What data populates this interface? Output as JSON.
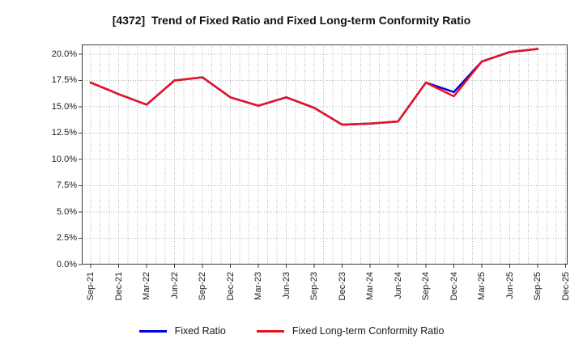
{
  "title": "[4372]  Trend of Fixed Ratio and Fixed Long-term Conformity Ratio",
  "chart_data": {
    "type": "line",
    "title": "[4372]  Trend of Fixed Ratio and Fixed Long-term Conformity Ratio",
    "categories": [
      "Sep-21",
      "Dec-21",
      "Mar-22",
      "Jun-22",
      "Sep-22",
      "Dec-22",
      "Mar-23",
      "Jun-23",
      "Sep-23",
      "Dec-23",
      "Mar-24",
      "Jun-24",
      "Sep-24",
      "Dec-24",
      "Mar-25",
      "Jun-25",
      "Sep-25",
      "Dec-25"
    ],
    "series": [
      {
        "name": "Fixed Ratio",
        "color": "#0000dd",
        "values": [
          17.3,
          16.2,
          15.2,
          17.5,
          17.8,
          15.9,
          15.1,
          15.9,
          14.9,
          13.3,
          13.4,
          13.6,
          17.3,
          16.4,
          19.3,
          20.2,
          20.5,
          null
        ]
      },
      {
        "name": "Fixed Long-term Conformity Ratio",
        "color": "#e8121f",
        "values": [
          17.3,
          16.2,
          15.2,
          17.5,
          17.8,
          15.9,
          15.1,
          15.9,
          14.9,
          13.3,
          13.4,
          13.6,
          17.3,
          16.0,
          19.3,
          20.2,
          20.5,
          null
        ]
      }
    ],
    "ylim": [
      0,
      20.92
    ],
    "ytick_values": [
      0,
      2.5,
      5,
      7.5,
      10,
      12.5,
      15,
      17.5,
      20
    ],
    "ytick_labels": [
      "0.0%",
      "2.5%",
      "5.0%",
      "7.5%",
      "10.0%",
      "12.5%",
      "15.0%",
      "17.5%",
      "20.0%"
    ],
    "grid": true,
    "minor_x_divisions": 3,
    "legend_position": "bottom"
  },
  "colors": {
    "grid": "#b3b3b3",
    "axis": "#3a3a3a",
    "text": "#1a1a1a"
  }
}
